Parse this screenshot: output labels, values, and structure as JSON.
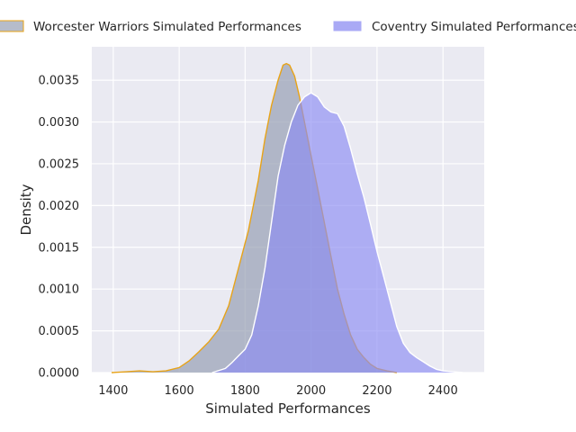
{
  "chart_data": {
    "type": "area",
    "title": "",
    "xlabel": "Simulated Performances",
    "ylabel": "Density",
    "xlim": [
      1335,
      2525
    ],
    "ylim": [
      0,
      0.0039
    ],
    "x_ticks": [
      1400,
      1600,
      1800,
      2000,
      2200,
      2400
    ],
    "y_ticks": [
      0.0,
      0.0005,
      0.001,
      0.0015,
      0.002,
      0.0025,
      0.003,
      0.0035
    ],
    "x_tick_labels": [
      "1400",
      "1600",
      "1800",
      "2000",
      "2200",
      "2400"
    ],
    "y_tick_labels": [
      "0.0000",
      "0.0005",
      "0.0010",
      "0.0015",
      "0.0020",
      "0.0025",
      "0.0030",
      "0.0035"
    ],
    "grid": true,
    "legend_position": "top",
    "series": [
      {
        "name": "Worcester Warriors Simulated Performances",
        "fill_color": "#9aa2b6",
        "line_color": "#e8a317",
        "points": [
          [
            1395,
            0.0
          ],
          [
            1440,
            1e-05
          ],
          [
            1480,
            2e-05
          ],
          [
            1520,
            1e-05
          ],
          [
            1560,
            2e-05
          ],
          [
            1600,
            6e-05
          ],
          [
            1630,
            0.00014
          ],
          [
            1660,
            0.00025
          ],
          [
            1690,
            0.00037
          ],
          [
            1720,
            0.00052
          ],
          [
            1750,
            0.0008
          ],
          [
            1780,
            0.00125
          ],
          [
            1810,
            0.0017
          ],
          [
            1840,
            0.0023
          ],
          [
            1860,
            0.0028
          ],
          [
            1880,
            0.0032
          ],
          [
            1900,
            0.0035
          ],
          [
            1915,
            0.00368
          ],
          [
            1925,
            0.0037
          ],
          [
            1935,
            0.00368
          ],
          [
            1950,
            0.00355
          ],
          [
            1965,
            0.0033
          ],
          [
            1980,
            0.003
          ],
          [
            2000,
            0.0026
          ],
          [
            2020,
            0.0022
          ],
          [
            2040,
            0.0018
          ],
          [
            2060,
            0.0014
          ],
          [
            2080,
            0.001
          ],
          [
            2100,
            0.0007
          ],
          [
            2120,
            0.00045
          ],
          [
            2140,
            0.00028
          ],
          [
            2160,
            0.00018
          ],
          [
            2180,
            0.0001
          ],
          [
            2200,
            5e-05
          ],
          [
            2230,
            2e-05
          ],
          [
            2260,
            0.0
          ]
        ]
      },
      {
        "name": "Coventry Simulated Performances",
        "fill_color": "#8c8cf2",
        "line_color": "#ffffff",
        "points": [
          [
            1700,
            0.0
          ],
          [
            1740,
            5e-05
          ],
          [
            1760,
            0.00012
          ],
          [
            1780,
            0.0002
          ],
          [
            1800,
            0.00028
          ],
          [
            1820,
            0.00045
          ],
          [
            1840,
            0.0008
          ],
          [
            1860,
            0.00125
          ],
          [
            1880,
            0.0018
          ],
          [
            1900,
            0.00235
          ],
          [
            1920,
            0.00272
          ],
          [
            1940,
            0.003
          ],
          [
            1960,
            0.0032
          ],
          [
            1980,
            0.0033
          ],
          [
            2000,
            0.00335
          ],
          [
            2020,
            0.0033
          ],
          [
            2040,
            0.00318
          ],
          [
            2060,
            0.00312
          ],
          [
            2080,
            0.0031
          ],
          [
            2100,
            0.00295
          ],
          [
            2120,
            0.00268
          ],
          [
            2140,
            0.00238
          ],
          [
            2160,
            0.0021
          ],
          [
            2180,
            0.00178
          ],
          [
            2200,
            0.00145
          ],
          [
            2220,
            0.00115
          ],
          [
            2240,
            0.00085
          ],
          [
            2260,
            0.00055
          ],
          [
            2280,
            0.00035
          ],
          [
            2300,
            0.00024
          ],
          [
            2320,
            0.00018
          ],
          [
            2340,
            0.00013
          ],
          [
            2360,
            8e-05
          ],
          [
            2380,
            4e-05
          ],
          [
            2400,
            2e-05
          ],
          [
            2430,
            1e-05
          ],
          [
            2460,
            0.0
          ]
        ]
      }
    ]
  }
}
